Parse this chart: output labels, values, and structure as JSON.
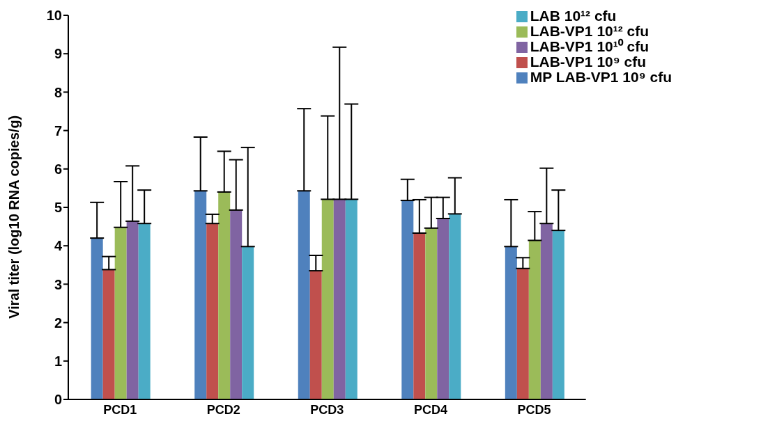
{
  "chart_data": {
    "type": "bar",
    "ylabel": "Viral titer (log10 RNA copies/g)",
    "categories": [
      "PCD1",
      "PCD2",
      "PCD3",
      "PCD4",
      "PCD5"
    ],
    "series": [
      {
        "name": "MP LAB-VP1 10⁹ cfu",
        "color": "#4f81bd",
        "values": [
          4.2,
          5.43,
          5.43,
          5.18,
          3.98
        ],
        "errors": [
          [
            4.2,
            5.13
          ],
          [
            5.43,
            6.83
          ],
          [
            5.43,
            7.57
          ],
          [
            5.18,
            5.73
          ],
          [
            3.98,
            5.2
          ]
        ]
      },
      {
        "name": "LAB-VP1 10⁹ cfu",
        "color": "#c0504d",
        "values": [
          3.38,
          4.58,
          3.35,
          4.33,
          3.41
        ],
        "errors": [
          [
            3.38,
            3.72
          ],
          [
            4.58,
            4.82
          ],
          [
            3.35,
            3.75
          ],
          [
            4.33,
            5.2
          ],
          [
            3.41,
            3.69
          ]
        ]
      },
      {
        "name": "LAB-VP1 10¹² cfu",
        "color": "#9bbb59",
        "values": [
          4.48,
          5.4,
          5.21,
          4.46,
          4.14
        ],
        "errors": [
          [
            4.48,
            5.67
          ],
          [
            5.4,
            6.46
          ],
          [
            5.21,
            7.38
          ],
          [
            4.46,
            5.26
          ],
          [
            4.14,
            4.89
          ]
        ]
      },
      {
        "name": "LAB-VP1 10¹⁰ cfu",
        "color": "#8064a2",
        "values": [
          4.64,
          4.93,
          5.21,
          4.71,
          4.58
        ],
        "errors": [
          [
            4.64,
            6.08
          ],
          [
            4.93,
            6.24
          ],
          [
            5.21,
            9.17
          ],
          [
            4.71,
            5.26
          ],
          [
            4.58,
            6.02
          ]
        ]
      },
      {
        "name": "LAB 10¹² cfu",
        "color": "#4bacc6",
        "values": [
          4.58,
          3.98,
          5.21,
          4.83,
          4.4
        ],
        "errors": [
          [
            4.58,
            5.45
          ],
          [
            3.98,
            6.56
          ],
          [
            5.21,
            7.69
          ],
          [
            4.83,
            5.77
          ],
          [
            4.4,
            5.45
          ]
        ]
      }
    ],
    "ylim": [
      0,
      10
    ],
    "yticks": [
      0,
      1,
      2,
      3,
      4,
      5,
      6,
      7,
      8,
      9,
      10
    ],
    "grid": false,
    "legend": "top right"
  }
}
